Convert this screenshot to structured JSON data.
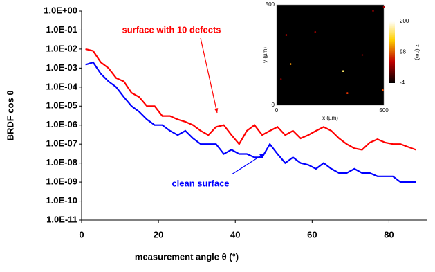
{
  "chart_data": [
    {
      "type": "line",
      "xlabel": "measurement angle θ (°)",
      "ylabel": "BRDF cos θ",
      "xlim": [
        0,
        90
      ],
      "xticks": [
        0,
        20,
        40,
        60,
        80
      ],
      "ylim": [
        1e-11,
        1
      ],
      "log_y": true,
      "grid": false,
      "yticks": [
        {
          "value": 1,
          "label": "1.0E+00"
        },
        {
          "value": 0.1,
          "label": "1.0E-01"
        },
        {
          "value": 0.01,
          "label": "1.0E-02"
        },
        {
          "value": 0.001,
          "label": "1.0E-03"
        },
        {
          "value": 0.0001,
          "label": "1.0E-04"
        },
        {
          "value": 1e-05,
          "label": "1.0E-05"
        },
        {
          "value": 1e-06,
          "label": "1.0E-06"
        },
        {
          "value": 1e-07,
          "label": "1.0E-07"
        },
        {
          "value": 1e-08,
          "label": "1.0E-08"
        },
        {
          "value": 1e-09,
          "label": "1.0E-09"
        },
        {
          "value": 1e-10,
          "label": "1.0E-10"
        },
        {
          "value": 1e-11,
          "label": "1.0E-11"
        }
      ],
      "x": [
        1,
        3,
        5,
        7,
        9,
        11,
        13,
        15,
        17,
        19,
        21,
        23,
        25,
        27,
        29,
        31,
        33,
        35,
        37,
        39,
        41,
        43,
        45,
        47,
        49,
        51,
        53,
        55,
        57,
        59,
        61,
        63,
        65,
        67,
        69,
        71,
        73,
        75,
        77,
        79,
        81,
        83,
        85,
        87
      ],
      "series": [
        {
          "name": "surface with 10 defects",
          "color": "#ff0000",
          "values": [
            0.01,
            0.008,
            0.002,
            0.001,
            0.0003,
            0.0002,
            5e-05,
            3e-05,
            1e-05,
            1e-05,
            3e-06,
            3e-06,
            2e-06,
            1.5e-06,
            1e-06,
            5e-07,
            3e-07,
            8e-07,
            1e-06,
            3e-07,
            1e-07,
            5e-07,
            1e-06,
            3e-07,
            5e-07,
            8e-07,
            3e-07,
            5e-07,
            2e-07,
            3e-07,
            5e-07,
            8e-07,
            5e-07,
            2e-07,
            1e-07,
            6e-08,
            5e-08,
            1.2e-07,
            1.8e-07,
            1.2e-07,
            1e-07,
            1e-07,
            7e-08,
            5e-08
          ]
        },
        {
          "name": "clean surface",
          "color": "#0000ff",
          "values": [
            0.0015,
            0.002,
            0.0005,
            0.0002,
            0.0001,
            3e-05,
            1e-05,
            5e-06,
            2e-06,
            1e-06,
            1e-06,
            5e-07,
            3e-07,
            5e-07,
            2e-07,
            1e-07,
            1e-07,
            1e-07,
            3e-08,
            5e-08,
            3e-08,
            3e-08,
            2e-08,
            2e-08,
            1e-07,
            3e-08,
            1e-08,
            2e-08,
            1e-08,
            8e-09,
            5e-09,
            1e-08,
            5e-09,
            3e-09,
            3e-09,
            5e-09,
            3e-09,
            3e-09,
            2e-09,
            2e-09,
            2e-09,
            1e-09,
            1e-09,
            1e-09
          ]
        }
      ]
    },
    {
      "type": "scatter",
      "xlabel": "x (µm)",
      "ylabel": "y (µm)",
      "colorbar_label": "z (nm)",
      "xlim": [
        0,
        500
      ],
      "xticks": [
        0,
        500
      ],
      "ylim": [
        0,
        500
      ],
      "yticks": [
        0,
        500
      ],
      "zlim": [
        -4,
        200
      ],
      "zticks": [
        -4,
        98,
        200
      ],
      "x": [
        45,
        180,
        65,
        310,
        330,
        495,
        500,
        20,
        450,
        400
      ],
      "y": [
        350,
        365,
        205,
        170,
        60,
        75,
        490,
        130,
        470,
        250
      ],
      "z": [
        60,
        40,
        120,
        150,
        80,
        90,
        50,
        30,
        40,
        30
      ]
    }
  ]
}
